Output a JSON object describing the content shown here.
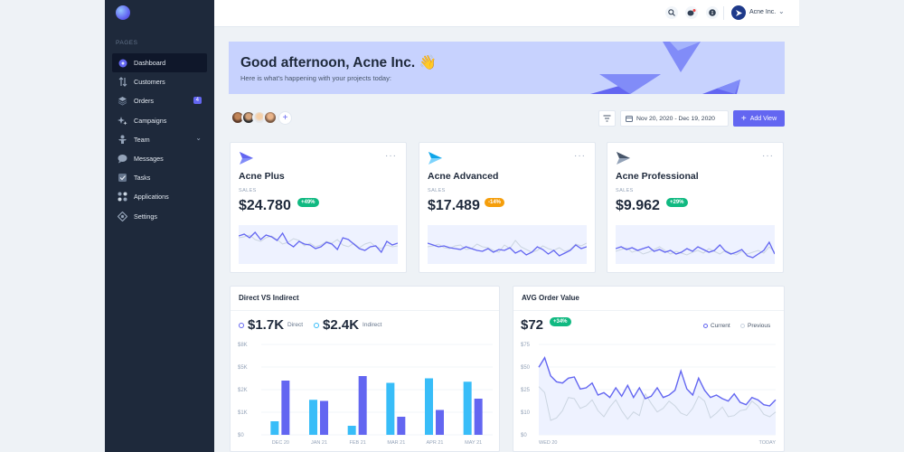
{
  "colors": {
    "sidebar_bg": "#1e293b",
    "accent": "#6366f1",
    "sky": "#38bdf8",
    "green": "#10b981",
    "amber": "#f59e0b",
    "banner_bg": "#c7d2fe"
  },
  "sidebar": {
    "section_label": "PAGES",
    "items": [
      {
        "label": "Dashboard",
        "icon": "dashboard-icon"
      },
      {
        "label": "Customers",
        "icon": "customers-icon"
      },
      {
        "label": "Orders",
        "icon": "orders-icon",
        "badge": "4"
      },
      {
        "label": "Campaigns",
        "icon": "campaigns-icon"
      },
      {
        "label": "Team",
        "icon": "team-icon"
      },
      {
        "label": "Messages",
        "icon": "messages-icon"
      },
      {
        "label": "Tasks",
        "icon": "tasks-icon"
      },
      {
        "label": "Applications",
        "icon": "applications-icon"
      },
      {
        "label": "Settings",
        "icon": "settings-icon"
      }
    ]
  },
  "header": {
    "user_name": "Acne Inc."
  },
  "banner": {
    "greeting": "Good afternoon, Acne Inc. 👋",
    "subtitle": "Here is what's happening with your projects today:"
  },
  "toolbar": {
    "date_range": "Nov 20, 2020 - Dec 19, 2020",
    "add_view_label": "Add View"
  },
  "products": [
    {
      "name": "Acne Plus",
      "sales_label": "SALES",
      "value": "$24.780",
      "badge": "+49%",
      "badge_color": "#10b981",
      "series": [
        42,
        44,
        40,
        46,
        38,
        43,
        41,
        37,
        45,
        34,
        30,
        36,
        33,
        32,
        28,
        30,
        35,
        33,
        27,
        40,
        38,
        33,
        28,
        26,
        30,
        31,
        24,
        36,
        32,
        34
      ],
      "series_prev": [
        40,
        41,
        43,
        38,
        36,
        40,
        42,
        38,
        33,
        35,
        39,
        37,
        31,
        34,
        30,
        32,
        36,
        34,
        38,
        32,
        30,
        34,
        29,
        33,
        35,
        30,
        28,
        32,
        30,
        31
      ]
    },
    {
      "name": "Acne Advanced",
      "sales_label": "SALES",
      "value": "$17.489",
      "badge": "-14%",
      "badge_color": "#f59e0b",
      "series": [
        34,
        32,
        30,
        31,
        29,
        28,
        27,
        30,
        28,
        26,
        25,
        28,
        24,
        27,
        26,
        29,
        23,
        26,
        21,
        24,
        30,
        27,
        22,
        26,
        20,
        23,
        26,
        32,
        28,
        30
      ],
      "series_prev": [
        30,
        31,
        33,
        29,
        28,
        31,
        32,
        27,
        28,
        33,
        30,
        29,
        26,
        24,
        32,
        28,
        37,
        30,
        27,
        24,
        26,
        31,
        28,
        26,
        29,
        25,
        27,
        33,
        31,
        34
      ]
    },
    {
      "name": "Acne Professional",
      "sales_label": "SALES",
      "value": "$9.962",
      "badge": "+29%",
      "badge_color": "#10b981",
      "series": [
        28,
        30,
        27,
        29,
        26,
        28,
        30,
        25,
        27,
        24,
        26,
        22,
        24,
        28,
        25,
        30,
        27,
        24,
        26,
        32,
        25,
        22,
        24,
        27,
        20,
        18,
        22,
        26,
        35,
        22
      ],
      "series_prev": [
        25,
        27,
        29,
        24,
        26,
        22,
        24,
        27,
        30,
        26,
        22,
        25,
        23,
        21,
        24,
        26,
        23,
        28,
        25,
        22,
        26,
        23,
        21,
        25,
        22,
        24,
        26,
        23,
        30,
        24
      ]
    }
  ],
  "direct_indirect": {
    "title": "Direct VS Indirect",
    "direct_value": "$1.7K",
    "direct_label": "Direct",
    "indirect_value": "$2.4K",
    "indirect_label": "Indirect"
  },
  "avg_order": {
    "title": "AVG Order Value",
    "value": "$72",
    "badge": "+34%",
    "current_label": "Current",
    "previous_label": "Previous"
  },
  "chart_data": [
    {
      "type": "bar",
      "title": "Direct VS Indirect",
      "categories": [
        "DEC 20",
        "JAN 21",
        "FEB 21",
        "MAR 21",
        "APR 21",
        "MAY 21"
      ],
      "series": [
        {
          "name": "Direct",
          "values": [
            4.8,
            3.0,
            5.2,
            1.6,
            2.2,
            3.2
          ],
          "color": "#6366f1"
        },
        {
          "name": "Indirect",
          "values": [
            1.2,
            3.1,
            0.8,
            4.6,
            5.0,
            4.7
          ],
          "color": "#38bdf8"
        }
      ],
      "ylim": [
        0,
        8
      ],
      "yticks": [
        "$0",
        "$1K",
        "$2K",
        "$5K",
        "$8K"
      ],
      "grid": true
    },
    {
      "type": "line",
      "title": "AVG Order Value",
      "x_labels": [
        "WED 20",
        "TODAY"
      ],
      "series": [
        {
          "name": "Current",
          "color": "#6366f1",
          "values": [
            56,
            64,
            49,
            44,
            43,
            47,
            48,
            38,
            39,
            43,
            33,
            35,
            31,
            39,
            32,
            41,
            31,
            39,
            30,
            32,
            39,
            31,
            33,
            37,
            53,
            38,
            33,
            47,
            37,
            31,
            33,
            30,
            28,
            34,
            27,
            25,
            31,
            29,
            25,
            24,
            29
          ]
        },
        {
          "name": "Previous",
          "color": "#cbd5e1",
          "values": [
            40,
            35,
            12,
            14,
            20,
            31,
            30,
            22,
            24,
            29,
            20,
            15,
            23,
            29,
            20,
            13,
            19,
            16,
            34,
            26,
            19,
            22,
            28,
            24,
            18,
            16,
            22,
            32,
            28,
            14,
            18,
            23,
            15,
            16,
            20,
            21,
            28,
            24,
            17,
            15,
            19
          ]
        }
      ],
      "ylim": [
        0,
        75
      ],
      "yticks": [
        "$0",
        "$10",
        "$25",
        "$50",
        "$75"
      ],
      "grid": true
    }
  ]
}
